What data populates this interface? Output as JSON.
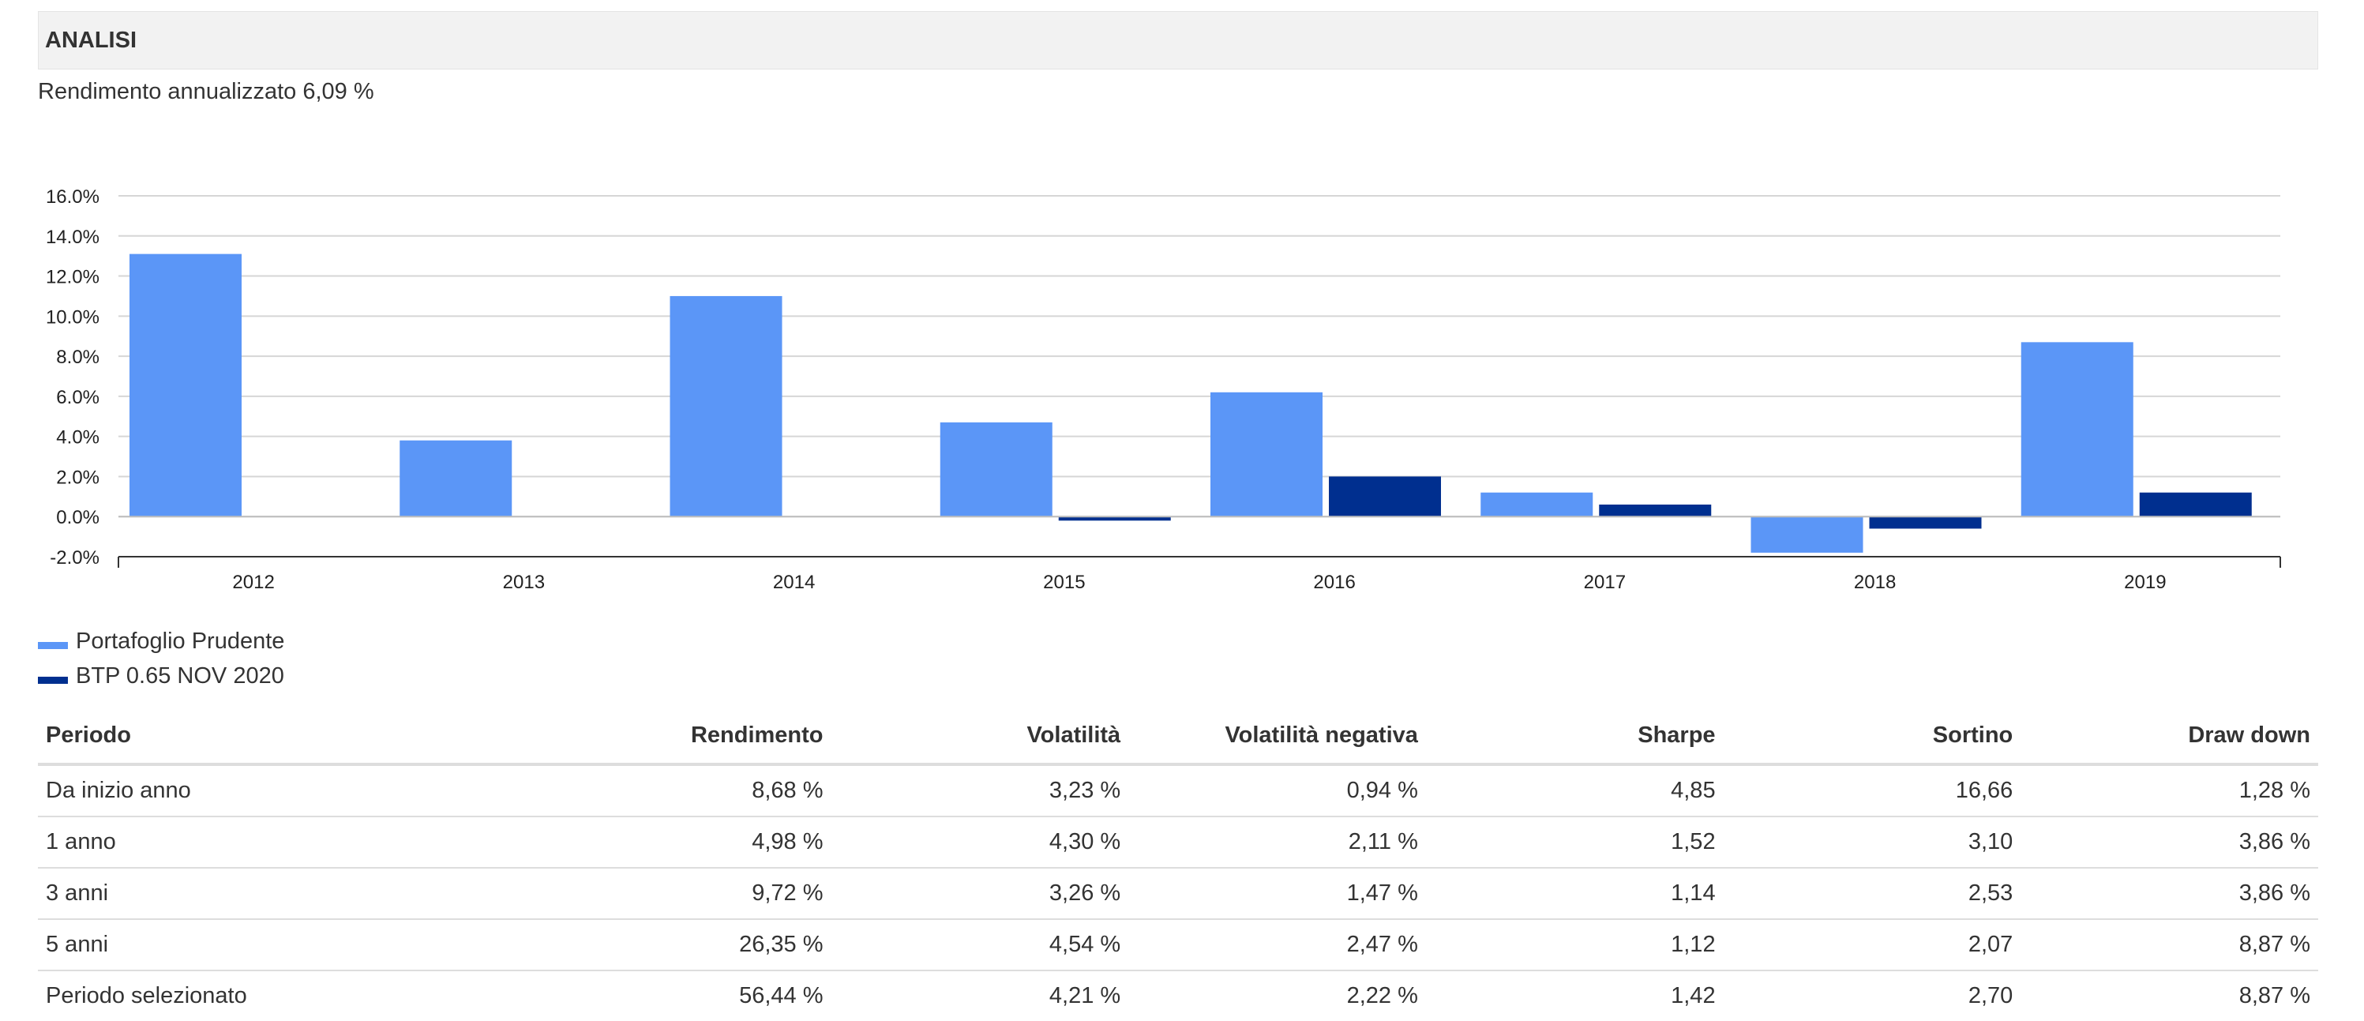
{
  "section": {
    "title": "ANALISI"
  },
  "summary": {
    "annual_return_text": "Rendimento annualizzato 6,09 %"
  },
  "chart_data": {
    "type": "bar",
    "categories": [
      "2012",
      "2013",
      "2014",
      "2015",
      "2016",
      "2017",
      "2018",
      "2019"
    ],
    "series": [
      {
        "name": "Portafoglio Prudente",
        "color": "#5b96f7",
        "values": [
          13.1,
          3.8,
          11.0,
          4.7,
          6.2,
          1.2,
          -1.8,
          8.7
        ]
      },
      {
        "name": "BTP 0.65 NOV 2020",
        "color": "#002f8f",
        "values": [
          null,
          null,
          null,
          -0.2,
          2.0,
          0.6,
          -0.6,
          1.2
        ]
      }
    ],
    "ylim": [
      -2,
      16
    ],
    "yticks": [
      "-2.0%",
      "0.0%",
      "2.0%",
      "4.0%",
      "6.0%",
      "8.0%",
      "10.0%",
      "12.0%",
      "14.0%",
      "16.0%"
    ],
    "grid": true,
    "legend": "bottom-left",
    "title": "",
    "xlabel": "",
    "ylabel": ""
  },
  "legend": [
    {
      "label": "Portafoglio Prudente",
      "color": "#5b96f7"
    },
    {
      "label": "BTP 0.65 NOV 2020",
      "color": "#002f8f"
    }
  ],
  "table": {
    "headers": [
      "Periodo",
      "Rendimento",
      "Volatilità",
      "Volatilità negativa",
      "Sharpe",
      "Sortino",
      "Draw down"
    ],
    "rows": [
      [
        "Da inizio anno",
        "8,68 %",
        "3,23 %",
        "0,94 %",
        "4,85",
        "16,66",
        "1,28 %"
      ],
      [
        "1 anno",
        "4,98 %",
        "4,30 %",
        "2,11 %",
        "1,52",
        "3,10",
        "3,86 %"
      ],
      [
        "3 anni",
        "9,72 %",
        "3,26 %",
        "1,47 %",
        "1,14",
        "2,53",
        "3,86 %"
      ],
      [
        "5 anni",
        "26,35 %",
        "4,54 %",
        "2,47 %",
        "1,12",
        "2,07",
        "8,87 %"
      ],
      [
        "Periodo selezionato",
        "56,44 %",
        "4,21 %",
        "2,22 %",
        "1,42",
        "2,70",
        "8,87 %"
      ]
    ]
  }
}
